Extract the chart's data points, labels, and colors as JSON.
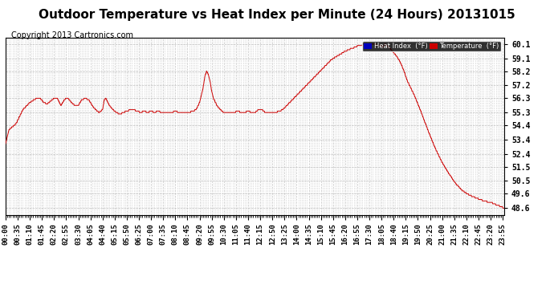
{
  "title": "Outdoor Temperature vs Heat Index per Minute (24 Hours) 20131015",
  "copyright": "Copyright 2013 Cartronics.com",
  "legend_heat_index": "Heat Index  (°F)",
  "legend_temperature": "Temperature  (°F)",
  "y_ticks": [
    48.6,
    49.6,
    50.5,
    51.5,
    52.4,
    53.4,
    54.4,
    55.3,
    56.3,
    57.2,
    58.2,
    59.1,
    60.1
  ],
  "y_min": 48.1,
  "y_max": 60.55,
  "background_color": "#ffffff",
  "line_color": "#cc0000",
  "grid_color": "#bbbbbb",
  "title_fontsize": 11,
  "copyright_fontsize": 7,
  "tick_fontsize": 7,
  "legend_bg_heat": "#0000bb",
  "legend_bg_temp": "#cc0000",
  "x_tick_every_n_minutes": 5,
  "x_label_every_n_ticks": 7
}
